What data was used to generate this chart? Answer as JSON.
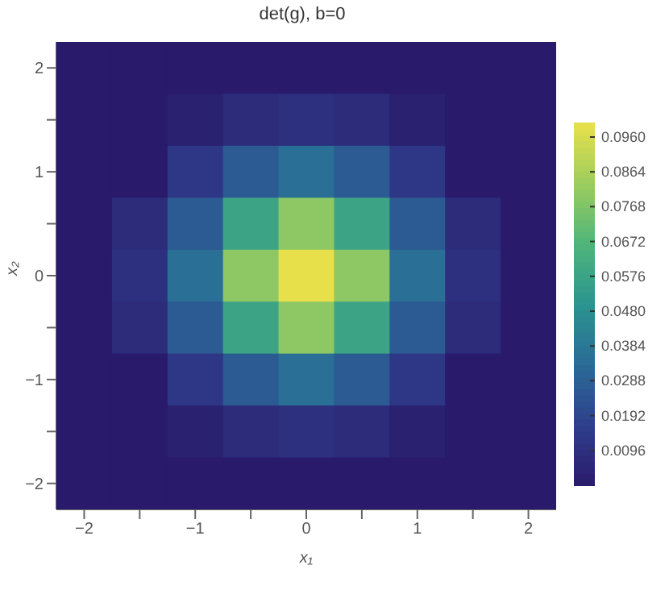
{
  "chart_data": {
    "type": "heatmap",
    "title": "det(g), b=0",
    "xlabel": "x₁",
    "ylabel": "x₂",
    "categories": [
      "−2",
      null,
      "−1",
      null,
      "0",
      null,
      "1",
      null,
      "2"
    ],
    "y_categories": [
      "2",
      null,
      "1",
      null,
      "0",
      null,
      "−1",
      null,
      "−2"
    ],
    "cells": [
      [
        0,
        0,
        0,
        0,
        0,
        0,
        0,
        0,
        0
      ],
      [
        0,
        0,
        0.003,
        0.008,
        0.01,
        0.008,
        0.003,
        0,
        0
      ],
      [
        0,
        0,
        0.013,
        0.027,
        0.035,
        0.027,
        0.013,
        0,
        0
      ],
      [
        0,
        0.008,
        0.027,
        0.058,
        0.08,
        0.058,
        0.027,
        0.008,
        0
      ],
      [
        0,
        0.01,
        0.035,
        0.08,
        0.1,
        0.08,
        0.035,
        0.01,
        0
      ],
      [
        0,
        0.008,
        0.027,
        0.058,
        0.08,
        0.058,
        0.027,
        0.008,
        0
      ],
      [
        0,
        0,
        0.013,
        0.027,
        0.035,
        0.027,
        0.013,
        0,
        0
      ],
      [
        0,
        0,
        0.003,
        0.008,
        0.01,
        0.008,
        0.003,
        0,
        0
      ],
      [
        0,
        0,
        0,
        0,
        0,
        0,
        0,
        0,
        0
      ]
    ],
    "clim": [
      0,
      0.1
    ],
    "cticks": [
      0.0096,
      0.0192,
      0.0288,
      0.0384,
      {
        "value": 0.048,
        "label": "0.0480"
      },
      0.0576,
      0.0672,
      0.0768,
      0.0864,
      {
        "value": 0.096,
        "label": "0.0960"
      }
    ]
  }
}
